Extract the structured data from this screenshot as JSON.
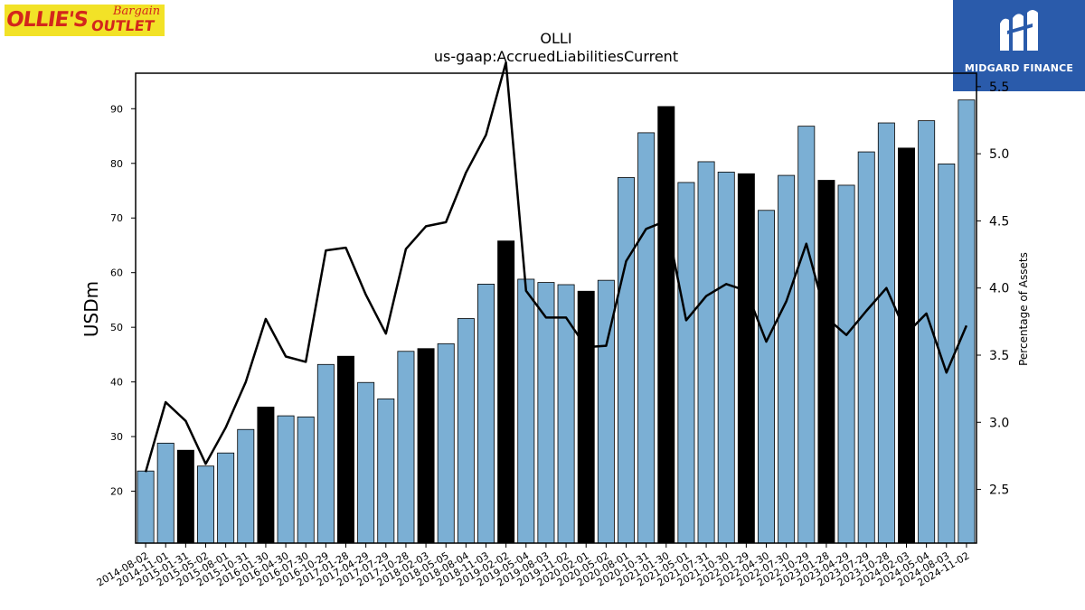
{
  "logos": {
    "left": {
      "line1": "OLLIE'S",
      "line2": "Bargain",
      "line3": "OUTLET"
    },
    "right": {
      "text": "MIDGARD FINANCE"
    }
  },
  "colors": {
    "bar_normal": "#7bafd4",
    "bar_highlight": "#000000",
    "line": "#000000"
  },
  "chart_data": {
    "type": "bar",
    "title": "OLLI",
    "subtitle": "us-gaap:AccruedLiabilitiesCurrent",
    "ylabel": "USDm",
    "y2label": "Percentage of Assets",
    "ylim": [
      10.5,
      96.5
    ],
    "y2lim": [
      2.1,
      5.6
    ],
    "yticks": [
      20,
      30,
      40,
      50,
      60,
      70,
      80,
      90
    ],
    "y2ticks": [
      2.5,
      3.0,
      3.5,
      4.0,
      4.5,
      5.0,
      5.5
    ],
    "y2ticklabels": [
      "2.5",
      "3.0",
      "3.5",
      "4.0",
      "4.5",
      "5.0",
      "5.5"
    ],
    "categories": [
      "2014-08-02",
      "2014-11-01",
      "2015-01-31",
      "2015-05-02",
      "2015-08-01",
      "2015-10-31",
      "2016-01-30",
      "2016-04-30",
      "2016-07-30",
      "2016-10-29",
      "2017-01-28",
      "2017-04-29",
      "2017-07-29",
      "2017-10-28",
      "2018-02-03",
      "2018-05-05",
      "2018-08-04",
      "2018-11-03",
      "2019-02-02",
      "2019-05-04",
      "2019-08-03",
      "2019-11-02",
      "2020-02-01",
      "2020-05-02",
      "2020-08-01",
      "2020-10-31",
      "2021-01-30",
      "2021-05-01",
      "2021-07-31",
      "2021-10-30",
      "2022-01-29",
      "2022-04-30",
      "2022-07-30",
      "2022-10-29",
      "2023-01-28",
      "2023-04-29",
      "2023-07-29",
      "2023-10-28",
      "2024-02-03",
      "2024-05-04",
      "2024-08-03",
      "2024-11-02"
    ],
    "values": [
      23.7,
      28.8,
      27.5,
      24.6,
      27.0,
      31.3,
      35.4,
      33.8,
      33.6,
      43.2,
      44.7,
      39.9,
      36.9,
      45.6,
      46.1,
      47.0,
      51.6,
      57.9,
      65.8,
      58.8,
      58.2,
      57.8,
      56.6,
      58.6,
      77.4,
      85.6,
      90.4,
      76.5,
      80.3,
      78.4,
      78.1,
      71.4,
      77.8,
      86.8,
      76.9,
      76.0,
      82.1,
      87.4,
      82.8,
      87.8,
      79.9,
      91.6
    ],
    "highlighted": [
      false,
      false,
      true,
      false,
      false,
      false,
      true,
      false,
      false,
      false,
      true,
      false,
      false,
      false,
      true,
      false,
      false,
      false,
      true,
      false,
      false,
      false,
      true,
      false,
      false,
      false,
      true,
      false,
      false,
      false,
      true,
      false,
      false,
      false,
      true,
      false,
      false,
      false,
      true,
      false,
      false,
      false
    ],
    "line": {
      "axis": "right",
      "values": [
        2.63,
        3.15,
        3.01,
        2.69,
        2.96,
        3.3,
        3.77,
        3.49,
        3.45,
        4.28,
        4.3,
        3.95,
        3.66,
        4.29,
        4.46,
        4.49,
        4.86,
        5.14,
        5.68,
        3.98,
        3.78,
        3.78,
        3.56,
        3.57,
        4.2,
        4.44,
        4.5,
        3.76,
        3.94,
        4.03,
        3.98,
        3.6,
        3.9,
        4.33,
        3.78,
        3.65,
        3.83,
        4.0,
        3.66,
        3.81,
        3.37,
        3.72
      ]
    }
  }
}
